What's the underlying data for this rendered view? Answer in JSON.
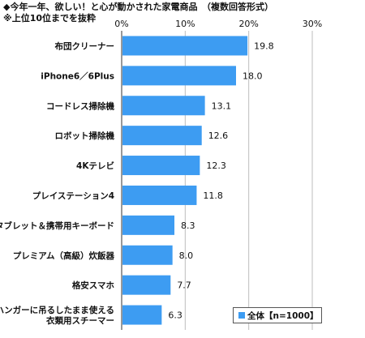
{
  "chart_data": {
    "type": "bar",
    "orientation": "horizontal",
    "title": "◆今年一年、欲しい！と心が動かされた家電商品　（複数回答形式）",
    "subtitle": "※上位10位までを抜粋",
    "categories": [
      "布団クリーナー",
      "iPhone6／6Plus",
      "コードレス掃除機",
      "ロボット掃除機",
      "4Kテレビ",
      "プレイステーション4",
      "タブレット＆携帯用キーボード",
      "プレミアム（高級）炊飯器",
      "格安スマホ",
      "ハンガーに吊るしたまま使える衣類用スチーマー"
    ],
    "category_lines": [
      [
        "布団クリーナー"
      ],
      [
        "iPhone6／6Plus"
      ],
      [
        "コードレス掃除機"
      ],
      [
        "ロボット掃除機"
      ],
      [
        "4Kテレビ"
      ],
      [
        "プレイステーション4"
      ],
      [
        "タブレット＆携帯用キーボード"
      ],
      [
        "プレミアム（高級）炊飯器"
      ],
      [
        "格安スマホ"
      ],
      [
        "ハンガーに吊るしたまま使える",
        "衣類用スチーマー"
      ]
    ],
    "series": [
      {
        "name": "全体【n=1000】",
        "values": [
          19.8,
          18.0,
          13.1,
          12.6,
          12.3,
          11.8,
          8.3,
          8.0,
          7.7,
          6.3
        ],
        "labels": [
          "19.8",
          "18.0",
          "13.1",
          "12.6",
          "12.3",
          "11.8",
          "8.3",
          "8.0",
          "7.7",
          "6.3"
        ]
      }
    ],
    "xlim": [
      0,
      30
    ],
    "ticks": [
      0,
      10,
      20,
      30
    ],
    "tick_labels": [
      "0%",
      "10%",
      "20%",
      "30%"
    ],
    "grid": true,
    "legend": "bottom-right",
    "colors": {
      "bar": "#3d9cf2",
      "grid": "#bdbdbd",
      "axis": "#333333"
    }
  }
}
